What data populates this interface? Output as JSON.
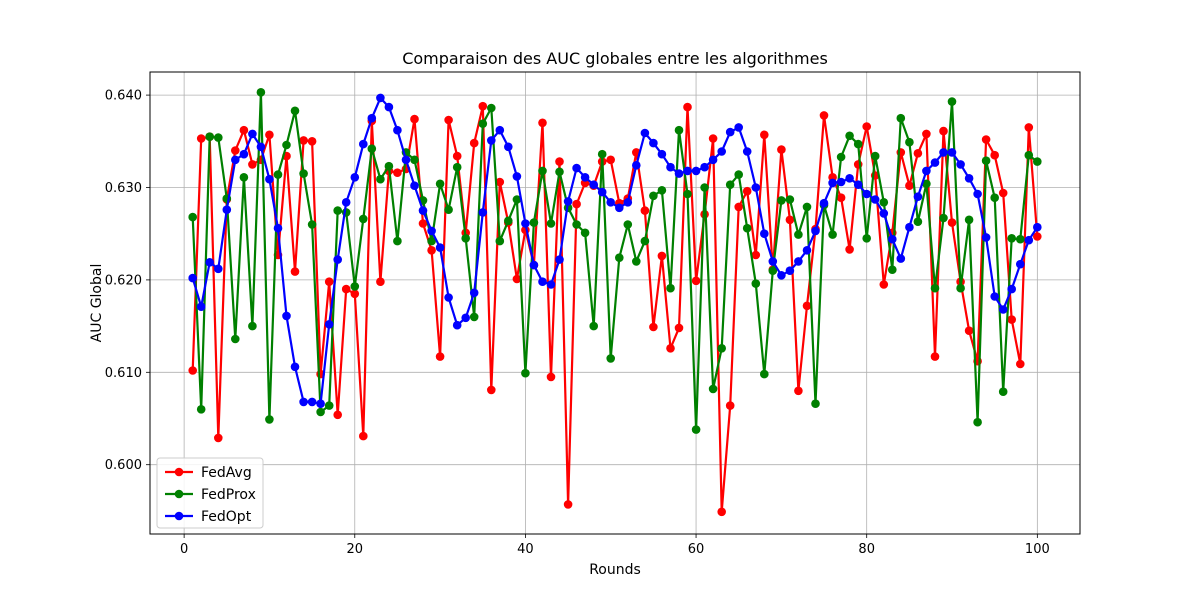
{
  "chart_data": {
    "type": "line",
    "title": "Comparaison des AUC globales entre les algorithmes",
    "xlabel": "Rounds",
    "ylabel": "AUC Global",
    "xlim": [
      -4,
      105
    ],
    "ylim": [
      0.5925,
      0.6425
    ],
    "xticks": [
      0,
      20,
      40,
      60,
      80,
      100
    ],
    "yticks": [
      0.6,
      0.61,
      0.62,
      0.63,
      0.64
    ],
    "ytick_labels": [
      "0.600",
      "0.610",
      "0.620",
      "0.630",
      "0.640"
    ],
    "grid": true,
    "legend_position": "lower-left",
    "x": [
      1,
      2,
      3,
      4,
      5,
      6,
      7,
      8,
      9,
      10,
      11,
      12,
      13,
      14,
      15,
      16,
      17,
      18,
      19,
      20,
      21,
      22,
      23,
      24,
      25,
      26,
      27,
      28,
      29,
      30,
      31,
      32,
      33,
      34,
      35,
      36,
      37,
      38,
      39,
      40,
      41,
      42,
      43,
      44,
      45,
      46,
      47,
      48,
      49,
      50,
      51,
      52,
      53,
      54,
      55,
      56,
      57,
      58,
      59,
      60,
      61,
      62,
      63,
      64,
      65,
      66,
      67,
      68,
      69,
      70,
      71,
      72,
      73,
      74,
      75,
      76,
      77,
      78,
      79,
      80,
      81,
      82,
      83,
      84,
      85,
      86,
      87,
      88,
      89,
      90,
      91,
      92,
      93,
      94,
      95,
      96,
      97,
      98,
      99,
      100
    ],
    "series": [
      {
        "name": "FedAvg",
        "color": "#ff0000",
        "values": [
          0.6102,
          0.6353,
          0.6355,
          0.6029,
          0.6287,
          0.634,
          0.6362,
          0.6325,
          0.633,
          0.6357,
          0.6227,
          0.6334,
          0.6209,
          0.6351,
          0.635,
          0.6098,
          0.6198,
          0.6054,
          0.619,
          0.6185,
          0.6031,
          0.6372,
          0.6198,
          0.6318,
          0.6316,
          0.632,
          0.6374,
          0.6261,
          0.6232,
          0.6117,
          0.6373,
          0.6334,
          0.6251,
          0.6348,
          0.6388,
          0.6081,
          0.6306,
          0.6262,
          0.6201,
          0.6254,
          0.6216,
          0.637,
          0.6095,
          0.6328,
          0.5957,
          0.6282,
          0.6305,
          0.6302,
          0.6328,
          0.633,
          0.6283,
          0.6288,
          0.6338,
          0.6275,
          0.6149,
          0.6226,
          0.6126,
          0.6148,
          0.6387,
          0.6199,
          0.6271,
          0.6353,
          0.5949,
          0.6064,
          0.6279,
          0.6296,
          0.6227,
          0.6357,
          0.6211,
          0.6341,
          0.6265,
          0.608,
          0.6172,
          0.6255,
          0.6378,
          0.6311,
          0.6289,
          0.6233,
          0.6325,
          0.6366,
          0.6313,
          0.6195,
          0.6251,
          0.6338,
          0.6302,
          0.6337,
          0.6358,
          0.6117,
          0.6361,
          0.6262,
          0.6198,
          0.6145,
          0.6112,
          0.6352,
          0.6335,
          0.6294,
          0.6157,
          0.6109,
          0.6365,
          0.6247
        ]
      },
      {
        "name": "FedProx",
        "color": "#008000",
        "values": [
          0.6268,
          0.606,
          0.6355,
          0.6354,
          0.6288,
          0.6136,
          0.6311,
          0.615,
          0.6403,
          0.6049,
          0.6314,
          0.6346,
          0.6383,
          0.6315,
          0.626,
          0.6057,
          0.6064,
          0.6275,
          0.6273,
          0.6193,
          0.6266,
          0.6342,
          0.6309,
          0.6323,
          0.6242,
          0.6338,
          0.633,
          0.6286,
          0.6242,
          0.6304,
          0.6276,
          0.6322,
          0.6245,
          0.616,
          0.6369,
          0.6386,
          0.6242,
          0.6264,
          0.6287,
          0.6099,
          0.6262,
          0.6318,
          0.6261,
          0.6317,
          0.6278,
          0.626,
          0.6251,
          0.615,
          0.6336,
          0.6115,
          0.6224,
          0.626,
          0.622,
          0.6242,
          0.6291,
          0.6297,
          0.6191,
          0.6362,
          0.6293,
          0.6038,
          0.63,
          0.6082,
          0.6126,
          0.6303,
          0.6314,
          0.6256,
          0.6196,
          0.6098,
          0.621,
          0.6286,
          0.6287,
          0.6249,
          0.6279,
          0.6066,
          0.6281,
          0.6249,
          0.6333,
          0.6356,
          0.6347,
          0.6245,
          0.6334,
          0.6284,
          0.6211,
          0.6375,
          0.6349,
          0.6263,
          0.6304,
          0.6191,
          0.6267,
          0.6393,
          0.6191,
          0.6265,
          0.6046,
          0.6329,
          0.6289,
          0.6079,
          0.6245,
          0.6244,
          0.6335,
          0.6328
        ]
      },
      {
        "name": "FedOpt",
        "color": "#0000ff",
        "values": [
          0.6202,
          0.6171,
          0.6219,
          0.6212,
          0.6276,
          0.633,
          0.6336,
          0.6358,
          0.6344,
          0.6309,
          0.6256,
          0.6161,
          0.6106,
          0.6068,
          0.6068,
          0.6066,
          0.6152,
          0.6222,
          0.6284,
          0.6311,
          0.6347,
          0.6375,
          0.6397,
          0.6387,
          0.6362,
          0.633,
          0.6302,
          0.6275,
          0.6253,
          0.6235,
          0.6181,
          0.6151,
          0.6159,
          0.6186,
          0.6273,
          0.6351,
          0.6362,
          0.6344,
          0.6312,
          0.6261,
          0.6216,
          0.6198,
          0.6195,
          0.6222,
          0.6285,
          0.6321,
          0.6311,
          0.6303,
          0.6295,
          0.6284,
          0.6278,
          0.6284,
          0.6324,
          0.6359,
          0.6348,
          0.6336,
          0.6322,
          0.6315,
          0.6318,
          0.6318,
          0.6322,
          0.633,
          0.6339,
          0.636,
          0.6365,
          0.6339,
          0.63,
          0.625,
          0.622,
          0.6205,
          0.621,
          0.622,
          0.6232,
          0.6253,
          0.6283,
          0.6305,
          0.6306,
          0.631,
          0.6303,
          0.6293,
          0.6287,
          0.6272,
          0.6244,
          0.6223,
          0.6257,
          0.629,
          0.6318,
          0.6327,
          0.6338,
          0.6338,
          0.6325,
          0.631,
          0.6293,
          0.6246,
          0.6182,
          0.6168,
          0.619,
          0.6217,
          0.6243,
          0.6257
        ]
      }
    ]
  }
}
